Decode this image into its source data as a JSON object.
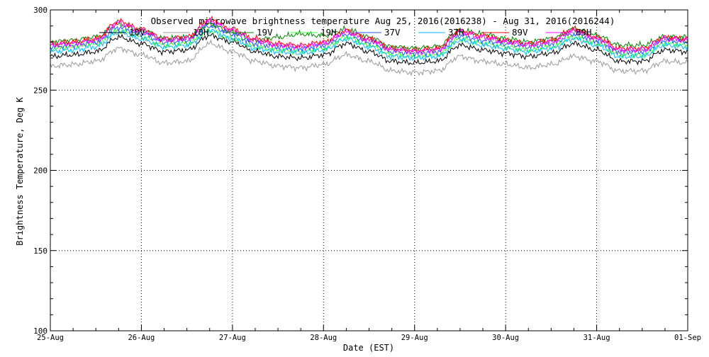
{
  "chart_data": {
    "type": "line",
    "title": "Observed microwave brightness temperature Aug 25, 2016(2016238) - Aug 31, 2016(2016244)",
    "xlabel": "Date (EST)",
    "ylabel": "Brightness Temperature, Deg K",
    "ylim": [
      100,
      300
    ],
    "xlim": [
      "25-Aug",
      "01-Sep"
    ],
    "x_ticks": [
      "25-Aug",
      "26-Aug",
      "27-Aug",
      "28-Aug",
      "29-Aug",
      "30-Aug",
      "31-Aug",
      "01-Sep"
    ],
    "y_ticks": [
      100,
      150,
      200,
      250,
      300
    ],
    "grid": true,
    "legend_position": "top",
    "x_hours": [
      0,
      6,
      12,
      18,
      24,
      30,
      36,
      42,
      48,
      54,
      60,
      66,
      72,
      78,
      84,
      90,
      96,
      102,
      108,
      114,
      120,
      126,
      132,
      138,
      144,
      150,
      156,
      162,
      168
    ],
    "series": [
      {
        "name": "10V",
        "color": "#000000",
        "values": [
          271,
          272,
          274,
          283,
          279,
          274,
          275,
          284,
          280,
          274,
          271,
          270,
          272,
          279,
          274,
          268,
          267,
          268,
          278,
          275,
          273,
          271,
          273,
          279,
          275,
          268,
          268,
          275,
          274
        ]
      },
      {
        "name": "10H",
        "color": "#999999",
        "values": [
          265,
          266,
          268,
          276,
          272,
          267,
          268,
          279,
          274,
          268,
          265,
          264,
          266,
          272,
          268,
          262,
          261,
          262,
          271,
          268,
          266,
          264,
          266,
          271,
          268,
          262,
          262,
          268,
          267
        ]
      },
      {
        "name": "19V",
        "color": "#008800",
        "values": [
          280,
          281,
          283,
          291,
          287,
          282,
          283,
          291,
          286,
          281,
          283,
          285,
          284,
          288,
          283,
          277,
          276,
          277,
          287,
          285,
          282,
          280,
          282,
          288,
          284,
          278,
          278,
          283,
          283
        ]
      },
      {
        "name": "19H",
        "color": "#33ff33",
        "values": [
          276,
          277,
          279,
          287,
          283,
          278,
          279,
          287,
          282,
          277,
          275,
          274,
          276,
          283,
          278,
          272,
          271,
          272,
          282,
          279,
          277,
          275,
          277,
          283,
          279,
          272,
          272,
          279,
          278
        ]
      },
      {
        "name": "37V",
        "color": "#2255ff",
        "values": [
          277,
          278,
          280,
          289,
          285,
          280,
          281,
          290,
          285,
          279,
          277,
          276,
          278,
          285,
          280,
          274,
          273,
          274,
          284,
          281,
          279,
          277,
          279,
          285,
          281,
          274,
          274,
          281,
          280
        ]
      },
      {
        "name": "37H",
        "color": "#00bbff",
        "values": [
          274,
          275,
          277,
          286,
          282,
          277,
          278,
          287,
          282,
          276,
          274,
          273,
          275,
          282,
          277,
          271,
          270,
          271,
          281,
          278,
          276,
          274,
          276,
          282,
          278,
          271,
          271,
          278,
          277
        ]
      },
      {
        "name": "89V",
        "color": "#ff0000",
        "values": [
          279,
          280,
          282,
          293,
          288,
          282,
          283,
          294,
          288,
          282,
          279,
          278,
          280,
          287,
          282,
          276,
          275,
          276,
          287,
          284,
          281,
          279,
          281,
          288,
          283,
          276,
          276,
          283,
          282
        ]
      },
      {
        "name": "89H",
        "color": "#ff00ff",
        "values": [
          278,
          279,
          281,
          292,
          287,
          281,
          282,
          293,
          287,
          281,
          278,
          277,
          279,
          286,
          281,
          275,
          274,
          275,
          286,
          283,
          280,
          278,
          280,
          287,
          282,
          275,
          275,
          282,
          281
        ]
      }
    ]
  }
}
